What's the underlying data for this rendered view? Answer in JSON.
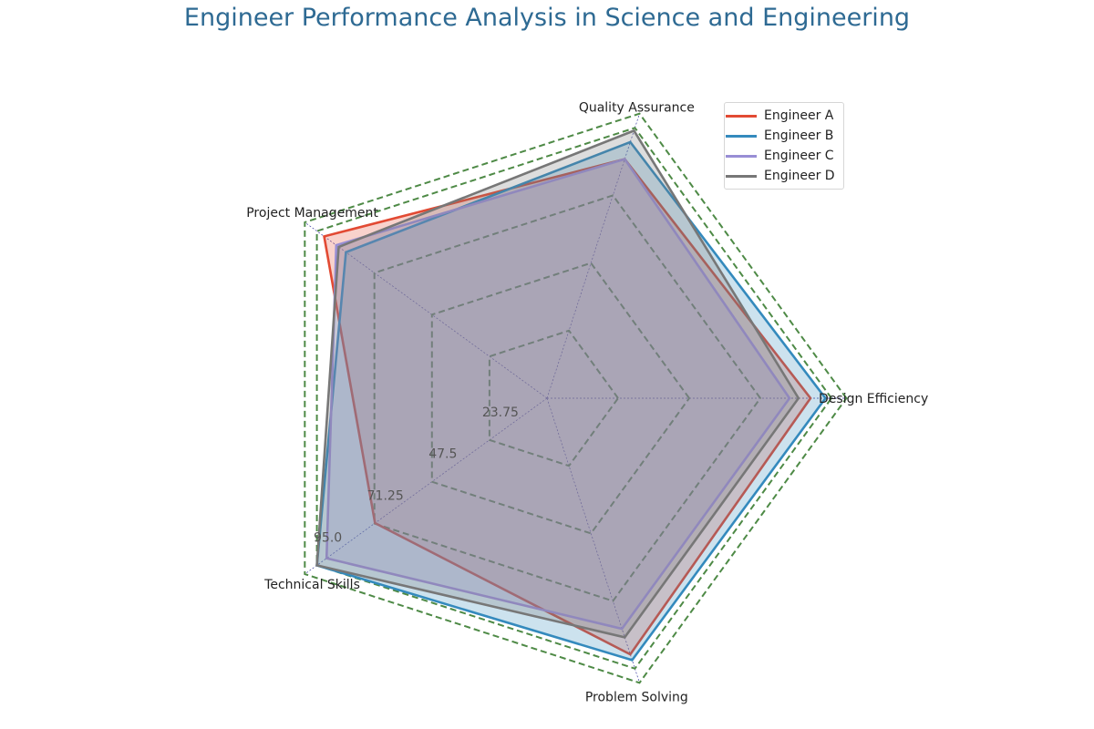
{
  "chart_data": {
    "type": "radar",
    "title": "Engineer Performance Analysis in Science and Engineering",
    "axes": [
      "Design Efficiency",
      "Quality Assurance",
      "Project Management",
      "Technical Skills",
      "Problem Solving"
    ],
    "r_max": 95,
    "r_ticks": [
      23.75,
      47.5,
      71.25,
      95.0
    ],
    "r_tick_labels": [
      "23.75",
      "47.5",
      "71.25",
      "95.0"
    ],
    "series": [
      {
        "name": "Engineer A",
        "color": "#e24a33",
        "values": [
          88,
          84,
          92,
          71,
          90
        ]
      },
      {
        "name": "Engineer B",
        "color": "#348abd",
        "values": [
          93,
          90,
          83,
          95,
          92
        ]
      },
      {
        "name": "Engineer C",
        "color": "#988ed5",
        "values": [
          81,
          84,
          87,
          91,
          81
        ]
      },
      {
        "name": "Engineer D",
        "color": "#777777",
        "values": [
          84,
          94,
          86,
          95,
          84
        ]
      }
    ],
    "grid_color": "#4e8a46",
    "spoke_color": "#3a3aa0",
    "legend": "top-right"
  }
}
